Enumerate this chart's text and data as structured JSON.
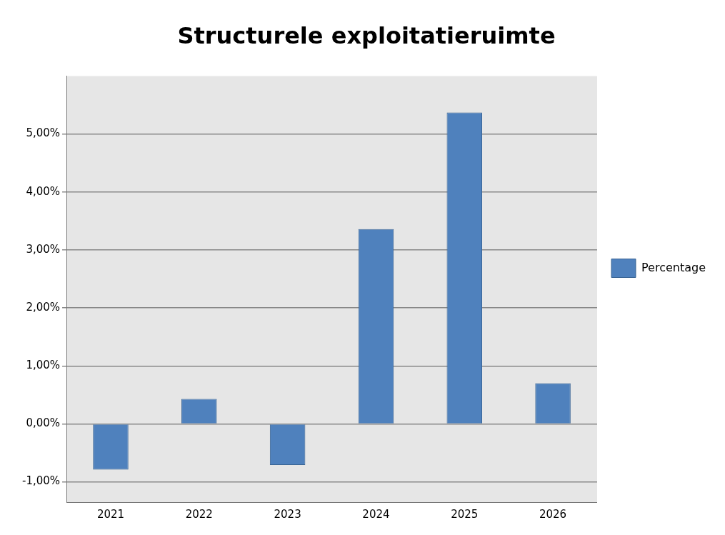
{
  "chart_data": {
    "type": "bar",
    "title": "Structurele exploitatieruimte",
    "categories": [
      "2021",
      "2022",
      "2023",
      "2024",
      "2025",
      "2026"
    ],
    "series": [
      {
        "name": "Percentage",
        "color": "#4f81bd",
        "values": [
          -0.79,
          0.43,
          -0.71,
          3.36,
          5.37,
          0.7
        ]
      }
    ],
    "ylim": [
      -1.35,
      6
    ],
    "yticks": [
      {
        "value": -1,
        "label": "-1,00%"
      },
      {
        "value": 0,
        "label": "0,00%"
      },
      {
        "value": 1,
        "label": "1,00%"
      },
      {
        "value": 2,
        "label": "2,00%"
      },
      {
        "value": 3,
        "label": "3,00%"
      },
      {
        "value": 4,
        "label": "4,00%"
      },
      {
        "value": 5,
        "label": "5,00%"
      }
    ],
    "grid": "y",
    "legend": "right"
  }
}
